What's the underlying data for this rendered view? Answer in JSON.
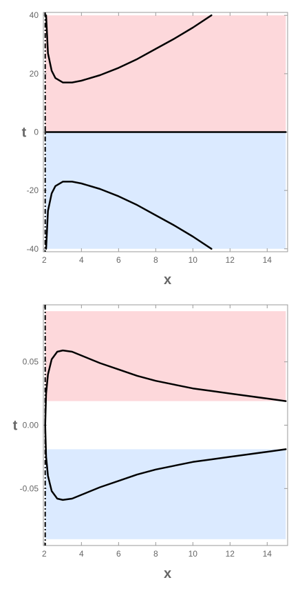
{
  "chart_data": [
    {
      "type": "area",
      "xlabel": "x",
      "ylabel": "t",
      "xlim": [
        1.95,
        15.1
      ],
      "ylim": [
        -41,
        41
      ],
      "x_ticks": [
        2,
        4,
        6,
        8,
        10,
        12,
        14
      ],
      "y_ticks": [
        -40,
        -20,
        0,
        20,
        40
      ],
      "y_tick_labels": [
        "-40",
        "-20",
        "0",
        "20",
        "40"
      ],
      "region_colors": {
        "upper": "#fdd8db",
        "lower": "#dbeaff"
      },
      "regions": [
        {
          "fill": "upper",
          "x_range": [
            2.05,
            15
          ],
          "t_range": [
            0,
            40
          ]
        },
        {
          "fill": "lower",
          "x_range": [
            2.05,
            15
          ],
          "t_range": [
            -40,
            0
          ]
        }
      ],
      "dashed_line_x": 2.05,
      "series": [
        {
          "style": "solid",
          "points": [
            [
              2.1,
              40
            ],
            [
              2.2,
              27
            ],
            [
              2.4,
              21
            ],
            [
              2.6,
              18.5
            ],
            [
              3.0,
              17
            ],
            [
              3.5,
              17
            ],
            [
              4,
              17.6
            ],
            [
              5,
              19.5
            ],
            [
              6,
              22
            ],
            [
              7,
              25
            ],
            [
              8,
              28.5
            ],
            [
              9,
              32
            ],
            [
              10,
              35.8
            ],
            [
              11,
              40
            ]
          ]
        },
        {
          "style": "solid",
          "points": [
            [
              2.1,
              -40
            ],
            [
              2.2,
              -27
            ],
            [
              2.4,
              -21
            ],
            [
              2.6,
              -18.5
            ],
            [
              3.0,
              -17
            ],
            [
              3.5,
              -17
            ],
            [
              4,
              -17.6
            ],
            [
              5,
              -19.5
            ],
            [
              6,
              -22
            ],
            [
              7,
              -25
            ],
            [
              8,
              -28.5
            ],
            [
              9,
              -32
            ],
            [
              10,
              -35.8
            ],
            [
              11,
              -40
            ]
          ]
        },
        {
          "style": "solid",
          "points": [
            [
              2.05,
              0
            ],
            [
              15,
              0
            ]
          ]
        }
      ]
    },
    {
      "type": "area",
      "xlabel": "x",
      "ylabel": "t",
      "xlim": [
        1.95,
        15.1
      ],
      "ylim": [
        -0.095,
        0.095
      ],
      "x_ticks": [
        2,
        4,
        6,
        8,
        10,
        12,
        14
      ],
      "y_ticks": [
        -0.05,
        0,
        0.05
      ],
      "y_tick_labels": [
        "-0.05",
        "0.00",
        "0.05"
      ],
      "region_colors": {
        "upper": "#fdd8db",
        "lower": "#dbeaff"
      },
      "regions": [
        {
          "fill": "upper",
          "x_range": [
            2.05,
            15
          ],
          "t_range": [
            0.019,
            0.09
          ]
        },
        {
          "fill": "lower",
          "x_range": [
            2.05,
            15
          ],
          "t_range": [
            -0.09,
            -0.019
          ]
        }
      ],
      "dashed_line_x": 2.05,
      "series": [
        {
          "style": "solid",
          "points": [
            [
              2.05,
              0
            ],
            [
              2.1,
              0.025
            ],
            [
              2.2,
              0.04
            ],
            [
              2.4,
              0.052
            ],
            [
              2.7,
              0.058
            ],
            [
              3.0,
              0.059
            ],
            [
              3.5,
              0.058
            ],
            [
              4,
              0.055
            ],
            [
              5,
              0.049
            ],
            [
              6,
              0.044
            ],
            [
              7,
              0.039
            ],
            [
              8,
              0.035
            ],
            [
              9,
              0.032
            ],
            [
              10,
              0.029
            ],
            [
              11,
              0.027
            ],
            [
              12,
              0.025
            ],
            [
              13,
              0.023
            ],
            [
              14,
              0.021
            ],
            [
              15,
              0.019
            ]
          ]
        },
        {
          "style": "solid",
          "points": [
            [
              2.05,
              0
            ],
            [
              2.1,
              -0.025
            ],
            [
              2.2,
              -0.04
            ],
            [
              2.4,
              -0.052
            ],
            [
              2.7,
              -0.058
            ],
            [
              3.0,
              -0.059
            ],
            [
              3.5,
              -0.058
            ],
            [
              4,
              -0.055
            ],
            [
              5,
              -0.049
            ],
            [
              6,
              -0.044
            ],
            [
              7,
              -0.039
            ],
            [
              8,
              -0.035
            ],
            [
              9,
              -0.032
            ],
            [
              10,
              -0.029
            ],
            [
              11,
              -0.027
            ],
            [
              12,
              -0.025
            ],
            [
              13,
              -0.023
            ],
            [
              14,
              -0.021
            ],
            [
              15,
              -0.019
            ]
          ]
        }
      ]
    }
  ]
}
